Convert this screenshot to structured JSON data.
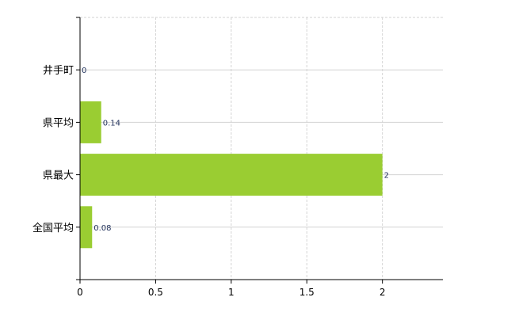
{
  "chart_data": {
    "type": "bar",
    "orientation": "horizontal",
    "categories": [
      "井手町",
      "県平均",
      "県最大",
      "全国平均"
    ],
    "values": [
      0,
      0.14,
      2,
      0.08
    ],
    "data_labels": [
      "0",
      "0.14",
      "2",
      "0.08"
    ],
    "title": "",
    "xlabel": "",
    "ylabel": "",
    "xlim": [
      0,
      2.4
    ],
    "xticks": [
      "0",
      "0.5",
      "1",
      "1.5",
      "2"
    ],
    "xtick_values": [
      0,
      0.5,
      1,
      1.5,
      2
    ],
    "grid": true,
    "legend": "none",
    "colors": {
      "bar": "#9acd32",
      "data_label": "#1f2f5a",
      "grid": "#d3d3d3",
      "axis": "#000000"
    }
  }
}
